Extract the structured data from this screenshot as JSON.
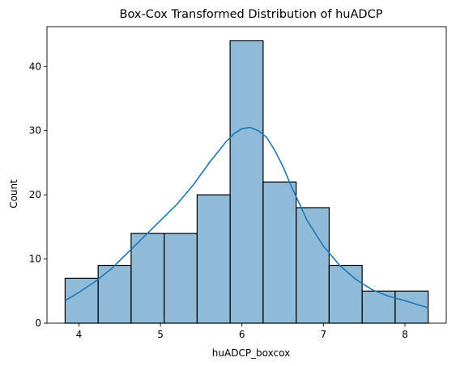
{
  "chart_data": {
    "type": "bar",
    "title": "Box-Cox Transformed Distribution of huADCP",
    "xlabel": "huADCP_boxcox",
    "ylabel": "Count",
    "bin_edges": [
      3.83,
      4.235,
      4.64,
      5.045,
      5.45,
      5.855,
      6.26,
      6.665,
      7.07,
      7.475,
      7.88,
      8.285
    ],
    "counts": [
      7,
      9,
      14,
      14,
      20,
      44,
      22,
      18,
      9,
      5,
      5
    ],
    "kde": {
      "x": [
        3.83,
        4.0,
        4.2,
        4.4,
        4.6,
        4.8,
        5.0,
        5.2,
        5.4,
        5.6,
        5.8,
        5.9,
        6.0,
        6.1,
        6.2,
        6.3,
        6.4,
        6.5,
        6.6,
        6.8,
        7.0,
        7.2,
        7.4,
        7.6,
        7.8,
        8.0,
        8.285
      ],
      "y": [
        3.5,
        4.8,
        6.5,
        8.5,
        11.0,
        13.5,
        16.0,
        18.5,
        21.5,
        25.0,
        28.2,
        29.5,
        30.3,
        30.5,
        30.0,
        29.0,
        27.0,
        24.5,
        21.5,
        16.0,
        12.0,
        9.0,
        6.8,
        5.2,
        4.2,
        3.5,
        2.4
      ]
    },
    "xticks": [
      4,
      5,
      6,
      7,
      8
    ],
    "yticks": [
      0,
      10,
      20,
      30,
      40
    ],
    "xlim": [
      3.6075,
      8.5075
    ],
    "ylim": [
      0,
      46.2
    ],
    "grid": false,
    "color": "#1f77b4"
  }
}
